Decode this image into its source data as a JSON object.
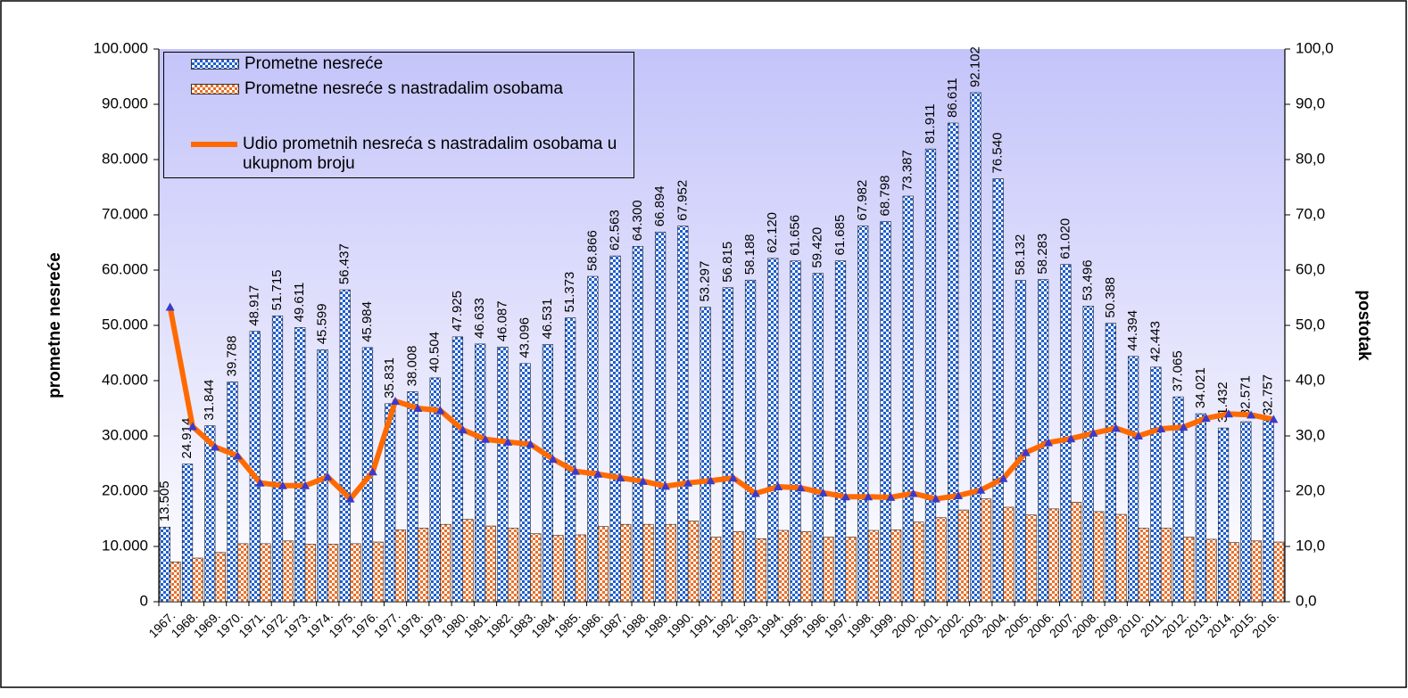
{
  "chart_data": {
    "type": "bar",
    "y_label": "prometne nesreće",
    "y2_label": "postotak",
    "categories": [
      "1967.",
      "1968.",
      "1969.",
      "1970.",
      "1971.",
      "1972.",
      "1973.",
      "1974.",
      "1975.",
      "1976.",
      "1977.",
      "1978.",
      "1979.",
      "1980.",
      "1981.",
      "1982.",
      "1983.",
      "1984.",
      "1985.",
      "1986.",
      "1987.",
      "1988.",
      "1989.",
      "1990.",
      "1991.",
      "1992.",
      "1993.",
      "1994.",
      "1995.",
      "1996.",
      "1997.",
      "1998.",
      "1999.",
      "2000.",
      "2001.",
      "2002.",
      "2003.",
      "2004.",
      "2005.",
      "2006.",
      "2007.",
      "2008.",
      "2009.",
      "2010.",
      "2011.",
      "2012.",
      "2013.",
      "2014.",
      "2015.",
      "2016."
    ],
    "series": [
      {
        "name": "Prometne nesreće",
        "type": "bar",
        "color": "#1f5fcf",
        "values": [
          13505,
          24914,
          31844,
          39788,
          48917,
          51715,
          49611,
          45599,
          56437,
          45984,
          35831,
          38008,
          40504,
          47925,
          46633,
          46087,
          43096,
          46531,
          51373,
          58866,
          62563,
          64300,
          66894,
          67952,
          53297,
          56815,
          58188,
          62120,
          61656,
          59420,
          61685,
          67982,
          68798,
          73387,
          81911,
          86611,
          92102,
          76540,
          58132,
          58283,
          61020,
          53496,
          50388,
          44394,
          42443,
          37065,
          34021,
          31432,
          32571,
          32757
        ],
        "value_labels": [
          "13.505",
          "24.914",
          "31.844",
          "39.788",
          "48.917",
          "51.715",
          "49.611",
          "45.599",
          "56.437",
          "45.984",
          "35.831",
          "38.008",
          "40.504",
          "47.925",
          "46.633",
          "46.087",
          "43.096",
          "46.531",
          "51.373",
          "58.866",
          "62.563",
          "64.300",
          "66.894",
          "67.952",
          "53.297",
          "56.815",
          "58.188",
          "62.120",
          "61.656",
          "59.420",
          "61.685",
          "67.982",
          "68.798",
          "73.387",
          "81.911",
          "86.611",
          "92.102",
          "76.540",
          "58.132",
          "58.283",
          "61.020",
          "53.496",
          "50.388",
          "44.394",
          "42.443",
          "37.065",
          "34.021",
          "31.432",
          "32.571",
          "32.757"
        ]
      },
      {
        "name": "Prometne nesreće s nastradalim osobama",
        "type": "bar",
        "color": "#e8702a",
        "values": [
          7200,
          7900,
          8900,
          10500,
          10500,
          11000,
          10400,
          10400,
          10500,
          10800,
          13000,
          13300,
          14000,
          14900,
          13700,
          13300,
          12300,
          12000,
          12100,
          13600,
          14000,
          14000,
          14000,
          14600,
          11700,
          12700,
          11400,
          12900,
          12700,
          11700,
          11700,
          12900,
          13000,
          14400,
          15200,
          16600,
          18600,
          17100,
          15700,
          16800,
          18000,
          16300,
          15800,
          13300,
          13300,
          11700,
          11300,
          10700,
          11000,
          10800
        ]
      },
      {
        "name": "Udio prometnih nesreća s nastradalim osobama u ukupnom broju",
        "type": "line",
        "axis": "y2",
        "color": "#ff6a00",
        "marker_color": "#3a3acc",
        "values": [
          53.3,
          31.7,
          28.0,
          26.4,
          21.5,
          21.0,
          21.0,
          22.6,
          18.6,
          23.5,
          36.3,
          35.0,
          34.6,
          31.1,
          29.4,
          28.9,
          28.5,
          25.8,
          23.6,
          23.1,
          22.4,
          21.8,
          20.9,
          21.5,
          21.9,
          22.4,
          19.6,
          20.8,
          20.6,
          19.7,
          19.0,
          19.0,
          18.9,
          19.6,
          18.6,
          19.2,
          20.2,
          22.3,
          27.0,
          28.8,
          29.5,
          30.5,
          31.4,
          30.0,
          31.3,
          31.6,
          33.2,
          34.0,
          33.8,
          33.0
        ]
      }
    ],
    "ylim": [
      0,
      100000
    ],
    "yticks": [
      0,
      {
        "value": 10000,
        "label": "10.000"
      },
      {
        "value": 20000,
        "label": "20.000"
      },
      {
        "value": 30000,
        "label": "30.000"
      },
      {
        "value": 40000,
        "label": "40.000"
      },
      {
        "value": 50000,
        "label": "50.000"
      },
      {
        "value": 60000,
        "label": "60.000"
      },
      {
        "value": 70000,
        "label": "70.000"
      },
      {
        "value": 80000,
        "label": "80.000"
      },
      {
        "value": 90000,
        "label": "90.000"
      },
      {
        "value": 100000,
        "label": "100.000"
      }
    ],
    "y2lim": [
      0,
      100
    ],
    "y2ticks": [
      {
        "value": 0,
        "label": "0,0"
      },
      {
        "value": 10,
        "label": "10,0"
      },
      {
        "value": 20,
        "label": "20,0"
      },
      {
        "value": 30,
        "label": "30,0"
      },
      {
        "value": 40,
        "label": "40,0"
      },
      {
        "value": 50,
        "label": "50,0"
      },
      {
        "value": 60,
        "label": "60,0"
      },
      {
        "value": 70,
        "label": "70,0"
      },
      {
        "value": 80,
        "label": "80,0"
      },
      {
        "value": 90,
        "label": "90,0"
      },
      {
        "value": 100,
        "label": "100,0"
      }
    ],
    "legend": "top-left"
  }
}
